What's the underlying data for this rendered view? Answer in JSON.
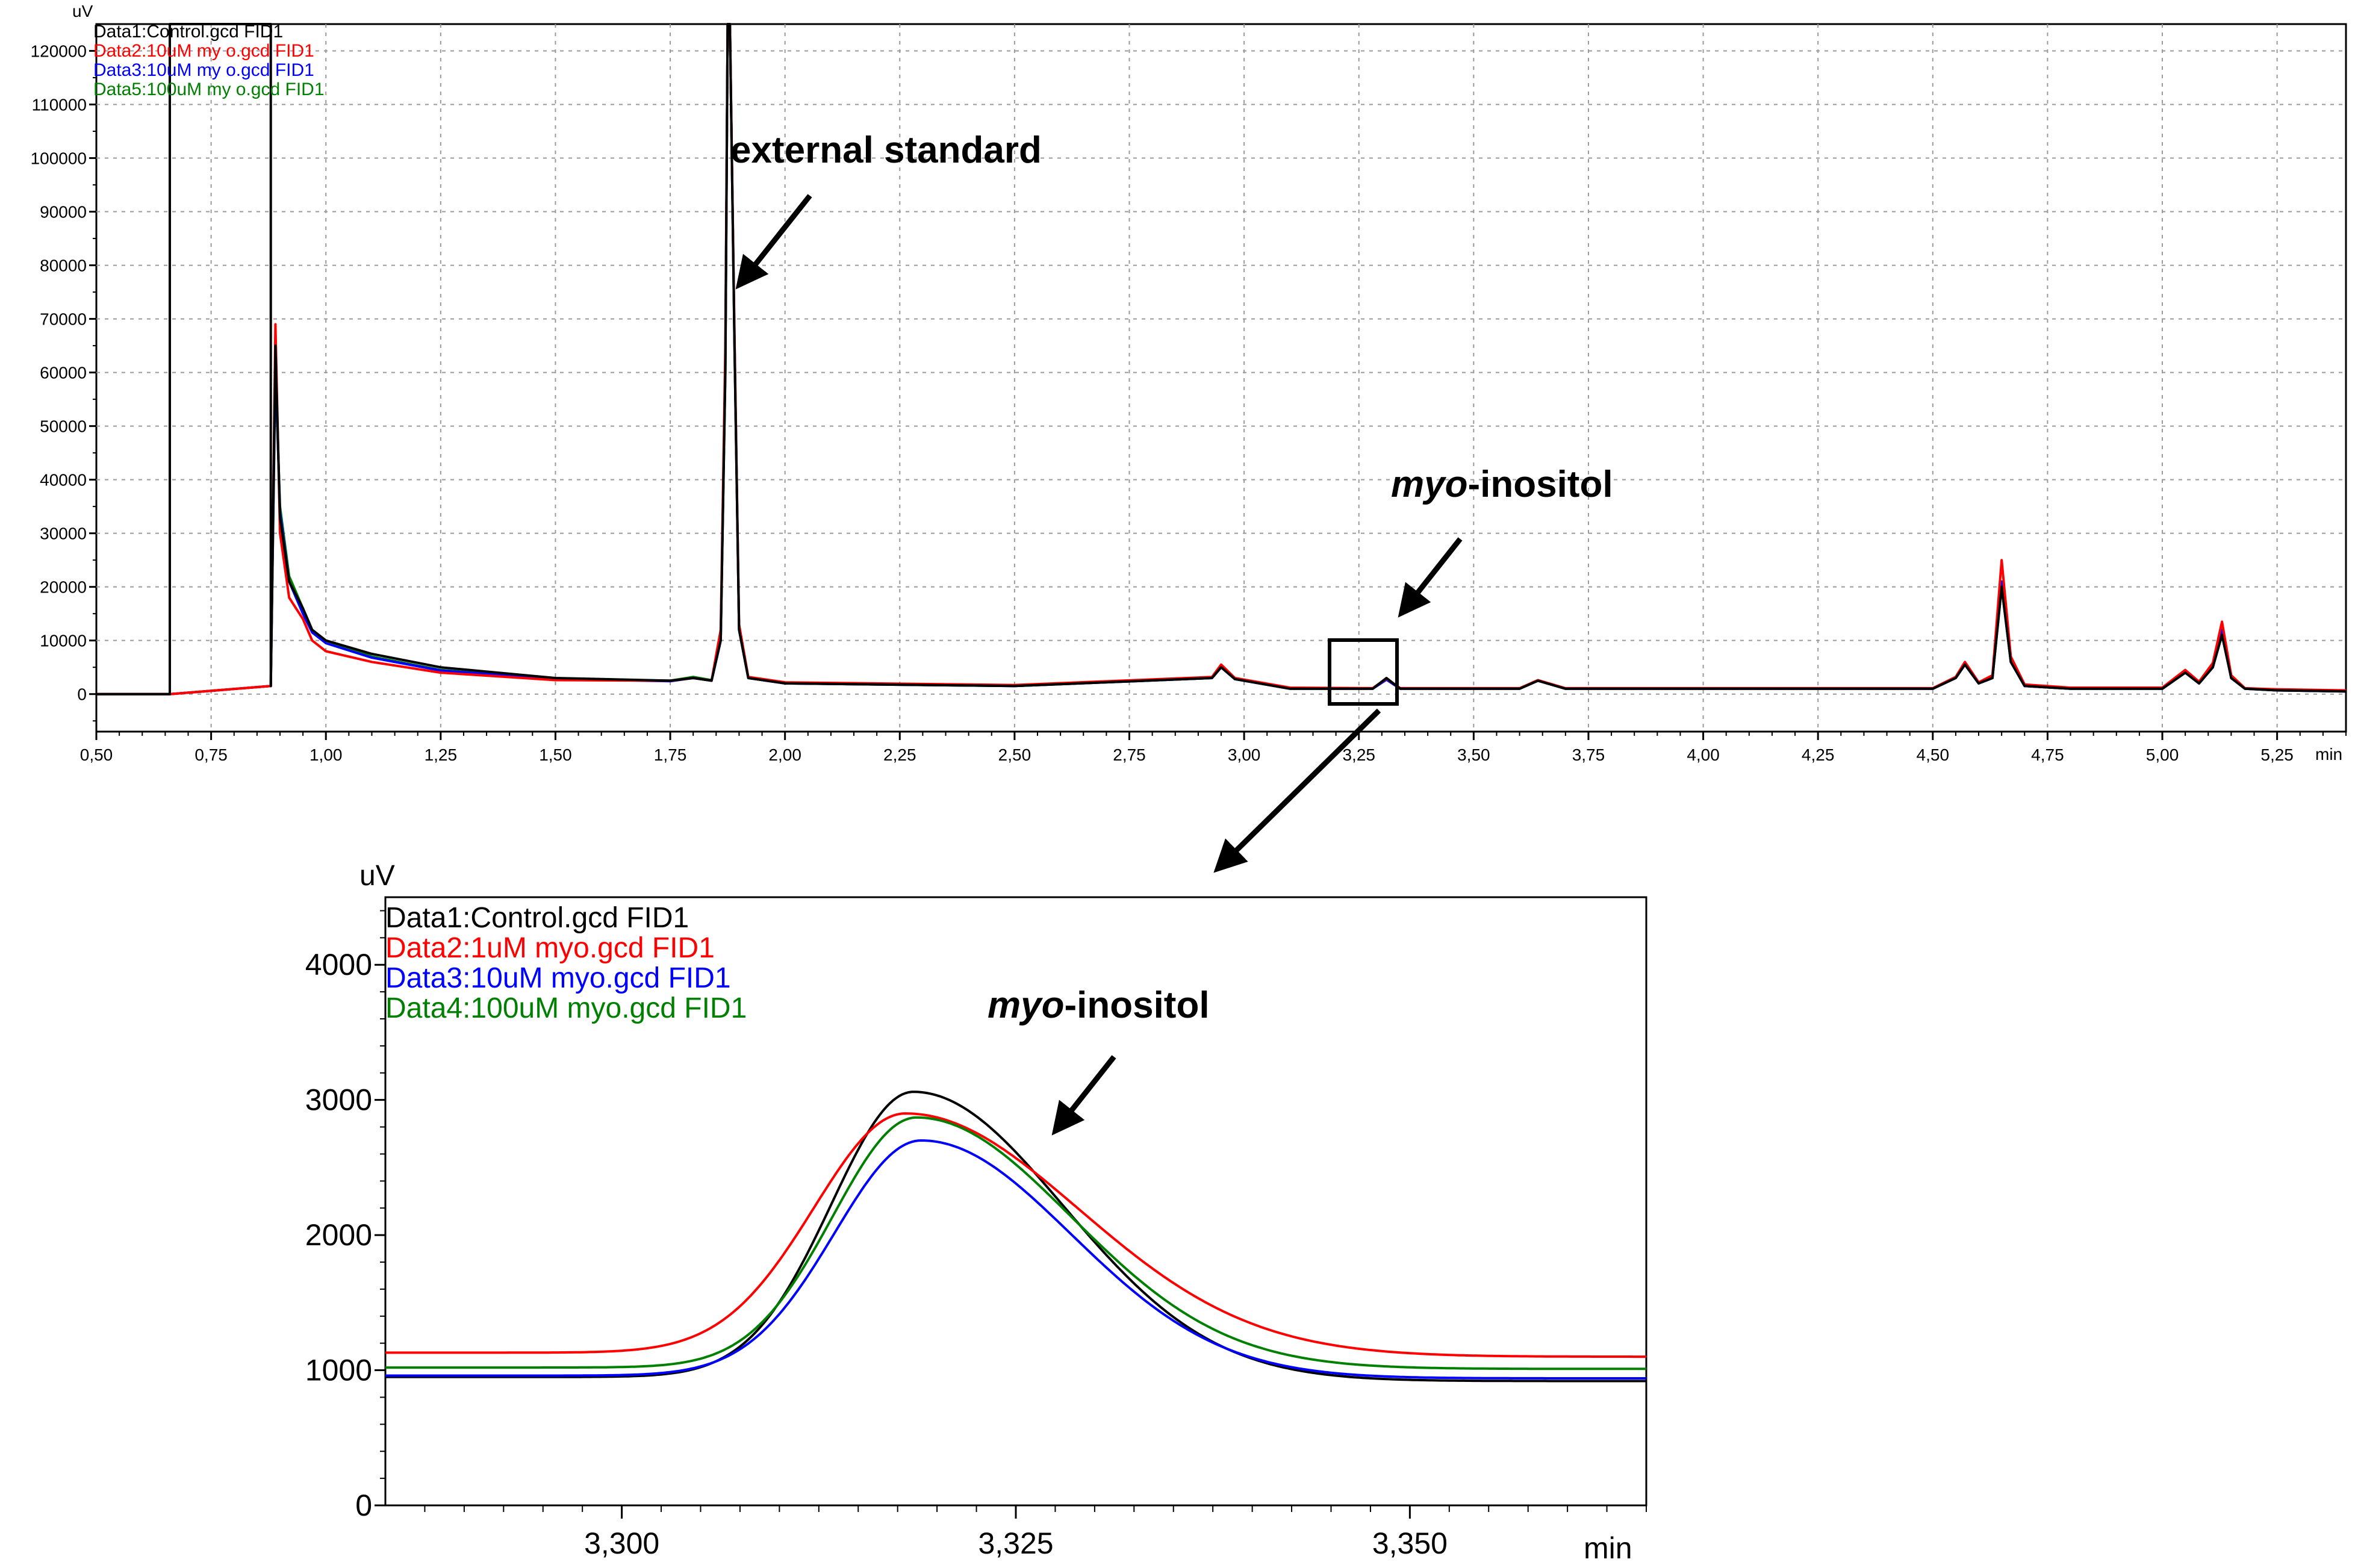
{
  "chart_data": [
    {
      "type": "line",
      "title": "",
      "xlabel": "min",
      "ylabel": "uV",
      "xlim": [
        0.5,
        5.4
      ],
      "ylim": [
        -7000,
        125000
      ],
      "grid": true,
      "legend_position": "top-left",
      "x_ticks": [
        0.5,
        0.75,
        1.0,
        1.25,
        1.5,
        1.75,
        2.0,
        2.25,
        2.5,
        2.75,
        3.0,
        3.25,
        3.5,
        3.75,
        4.0,
        4.25,
        4.5,
        4.75,
        5.0,
        5.25
      ],
      "x_tick_labels": [
        "0,50",
        "0,75",
        "1,00",
        "1,25",
        "1,50",
        "1,75",
        "2,00",
        "2,25",
        "2,50",
        "2,75",
        "3,00",
        "3,25",
        "3,50",
        "3,75",
        "4,00",
        "4,25",
        "4,50",
        "4,75",
        "5,00",
        "5,25"
      ],
      "y_ticks": [
        0,
        10000,
        20000,
        30000,
        40000,
        50000,
        60000,
        70000,
        80000,
        90000,
        100000,
        110000,
        120000
      ],
      "y_tick_labels": [
        "0",
        "10000",
        "20000",
        "30000",
        "40000",
        "50000",
        "60000",
        "70000",
        "80000",
        "90000",
        "100000",
        "110000",
        "120000"
      ],
      "legend": [
        {
          "label": "Data1:Control.gcd FID1",
          "color": "#000000"
        },
        {
          "label": "Data2:10uM my o.gcd FID1",
          "color": "#ff0000"
        },
        {
          "label": "Data3:10uM my o.gcd FID1",
          "color": "#0000ff"
        },
        {
          "label": "Data5:100uM my o.gcd FID1",
          "color": "#008000"
        }
      ],
      "series": [
        {
          "name": "Data5",
          "color": "#008000",
          "x": [
            0.5,
            0.66,
            0.88,
            0.89,
            0.9,
            0.92,
            0.95,
            0.97,
            1.0,
            1.1,
            1.25,
            1.5,
            1.75,
            1.8,
            1.84,
            1.86,
            1.87,
            1.875,
            1.88,
            1.89,
            1.9,
            1.92,
            2.0,
            2.5,
            2.93,
            2.95,
            2.98,
            3.1,
            3.28,
            3.31,
            3.34,
            3.6,
            3.64,
            3.7,
            4.0,
            4.5,
            4.55,
            4.57,
            4.6,
            4.63,
            4.65,
            4.67,
            4.7,
            4.8,
            5.0,
            5.05,
            5.08,
            5.11,
            5.13,
            5.15,
            5.18,
            5.25,
            5.4
          ],
          "y": [
            0,
            0,
            1500,
            60000,
            35000,
            22000,
            16000,
            12000,
            10000,
            7000,
            4500,
            2800,
            2500,
            3200,
            2600,
            10000,
            60000,
            125000,
            125000,
            65000,
            12000,
            3000,
            2000,
            1500,
            3000,
            5000,
            2800,
            1000,
            1000,
            2800,
            1000,
            1000,
            2500,
            1000,
            1000,
            1000,
            3000,
            5500,
            2000,
            3000,
            20000,
            6000,
            1500,
            1000,
            1000,
            4000,
            2000,
            5000,
            12000,
            3000,
            1000,
            700,
            500
          ]
        },
        {
          "name": "Data3",
          "color": "#0000ff",
          "x": [
            0.5,
            0.66,
            0.88,
            0.89,
            0.9,
            0.92,
            0.95,
            0.97,
            1.0,
            1.1,
            1.25,
            1.5,
            1.75,
            1.8,
            1.84,
            1.86,
            1.87,
            1.875,
            1.88,
            1.89,
            1.9,
            1.92,
            2.0,
            2.5,
            2.93,
            2.95,
            2.98,
            3.1,
            3.28,
            3.31,
            3.34,
            3.6,
            3.64,
            3.7,
            4.0,
            4.5,
            4.55,
            4.57,
            4.6,
            4.63,
            4.65,
            4.67,
            4.7,
            4.8,
            5.0,
            5.05,
            5.08,
            5.11,
            5.13,
            5.15,
            5.18,
            5.25,
            5.4
          ],
          "y": [
            0,
            0,
            1500,
            62000,
            34000,
            21000,
            15000,
            11500,
            9500,
            6800,
            4400,
            2800,
            2400,
            3000,
            2500,
            10000,
            62000,
            125000,
            125000,
            66000,
            12000,
            3000,
            2000,
            1500,
            3000,
            5000,
            2800,
            1000,
            1000,
            2700,
            1000,
            1000,
            2500,
            1000,
            1000,
            1000,
            3000,
            5500,
            2000,
            3000,
            21000,
            6000,
            1500,
            1000,
            1000,
            4000,
            2000,
            5000,
            12000,
            3000,
            1000,
            700,
            500
          ]
        },
        {
          "name": "Data2",
          "color": "#ff0000",
          "x": [
            0.5,
            0.66,
            0.88,
            0.89,
            0.9,
            0.92,
            0.95,
            0.97,
            1.0,
            1.1,
            1.25,
            1.5,
            1.75,
            1.8,
            1.84,
            1.86,
            1.87,
            1.875,
            1.88,
            1.89,
            1.9,
            1.92,
            2.0,
            2.5,
            2.93,
            2.95,
            2.98,
            3.1,
            3.28,
            3.31,
            3.34,
            3.6,
            3.64,
            3.7,
            4.0,
            4.5,
            4.55,
            4.57,
            4.6,
            4.63,
            4.65,
            4.67,
            4.7,
            4.8,
            5.0,
            5.05,
            5.08,
            5.11,
            5.13,
            5.15,
            5.18,
            5.25,
            5.4
          ],
          "y": [
            0,
            0,
            1500,
            69000,
            30000,
            18000,
            14000,
            10000,
            8000,
            6000,
            4000,
            2600,
            2500,
            3000,
            2500,
            12000,
            65000,
            125000,
            125000,
            67000,
            13000,
            3200,
            2200,
            1700,
            3200,
            5500,
            3000,
            1200,
            1100,
            2900,
            1100,
            1100,
            2600,
            1100,
            1100,
            1100,
            3200,
            6000,
            2200,
            3500,
            25000,
            7000,
            1800,
            1200,
            1200,
            4500,
            2300,
            5800,
            13500,
            3500,
            1100,
            900,
            700
          ]
        },
        {
          "name": "Data1",
          "color": "#000000",
          "x": [
            0.5,
            0.66,
            0.66,
            0.88,
            0.88,
            0.89,
            0.9,
            0.92,
            0.95,
            0.97,
            1.0,
            1.1,
            1.25,
            1.5,
            1.75,
            1.8,
            1.84,
            1.86,
            1.87,
            1.875,
            1.88,
            1.89,
            1.9,
            1.92,
            2.0,
            2.5,
            2.93,
            2.95,
            2.98,
            3.1,
            3.28,
            3.31,
            3.34,
            3.6,
            3.64,
            3.7,
            4.0,
            4.5,
            4.55,
            4.57,
            4.6,
            4.63,
            4.65,
            4.67,
            4.7,
            4.8,
            5.0,
            5.05,
            5.08,
            5.11,
            5.13,
            5.15,
            5.18,
            5.25,
            5.4
          ],
          "y": [
            0,
            0,
            125000,
            125000,
            1500,
            65000,
            33000,
            21000,
            16000,
            12000,
            10000,
            7500,
            5000,
            3000,
            2500,
            3000,
            2500,
            10000,
            60000,
            125000,
            125000,
            65000,
            12000,
            3000,
            2000,
            1500,
            3000,
            5000,
            2800,
            1000,
            1000,
            3000,
            1000,
            1000,
            2500,
            1000,
            1000,
            1000,
            3000,
            5500,
            2000,
            3000,
            20000,
            6000,
            1500,
            1000,
            1000,
            4000,
            2000,
            5000,
            11000,
            3000,
            1000,
            700,
            500
          ]
        }
      ]
    },
    {
      "type": "line",
      "title": "",
      "xlabel": "min",
      "ylabel": "uV",
      "xlim": [
        3.285,
        3.365
      ],
      "ylim": [
        0,
        4500
      ],
      "grid": false,
      "legend_position": "top-left",
      "x_ticks": [
        3.3,
        3.325,
        3.35
      ],
      "x_tick_labels": [
        "3,300",
        "3,325",
        "3,350"
      ],
      "y_ticks": [
        0,
        1000,
        2000,
        3000,
        4000
      ],
      "y_tick_labels": [
        "0",
        "1000",
        "2000",
        "3000",
        "4000"
      ],
      "legend": [
        {
          "label": "Data1:Control.gcd FID1",
          "color": "#000000"
        },
        {
          "label": "Data2:1uM myo.gcd FID1",
          "color": "#ff0000"
        },
        {
          "label": "Data3:10uM myo.gcd FID1",
          "color": "#0000ff"
        },
        {
          "label": "Data4:100uM myo.gcd FID1",
          "color": "#008000"
        }
      ],
      "series": [
        {
          "name": "Data1",
          "color": "#000000",
          "baseline": 950,
          "peak_x": 3.3185,
          "peak_y": 3060,
          "sigma_left": 0.0052,
          "sigma_right": 0.0095,
          "tail": 920
        },
        {
          "name": "Data2",
          "color": "#ff0000",
          "baseline": 1130,
          "peak_x": 3.318,
          "peak_y": 2900,
          "sigma_left": 0.0058,
          "sigma_right": 0.011,
          "tail": 1100
        },
        {
          "name": "Data3",
          "color": "#0000ff",
          "baseline": 960,
          "peak_x": 3.319,
          "peak_y": 2700,
          "sigma_left": 0.0055,
          "sigma_right": 0.0095,
          "tail": 940
        },
        {
          "name": "Data4",
          "color": "#008000",
          "baseline": 1020,
          "peak_x": 3.3187,
          "peak_y": 2870,
          "sigma_left": 0.0053,
          "sigma_right": 0.0098,
          "tail": 1010
        }
      ]
    }
  ],
  "annotations": {
    "external_standard": "external standard",
    "myo_italic": "myo",
    "myo_rest": "-inositol"
  }
}
